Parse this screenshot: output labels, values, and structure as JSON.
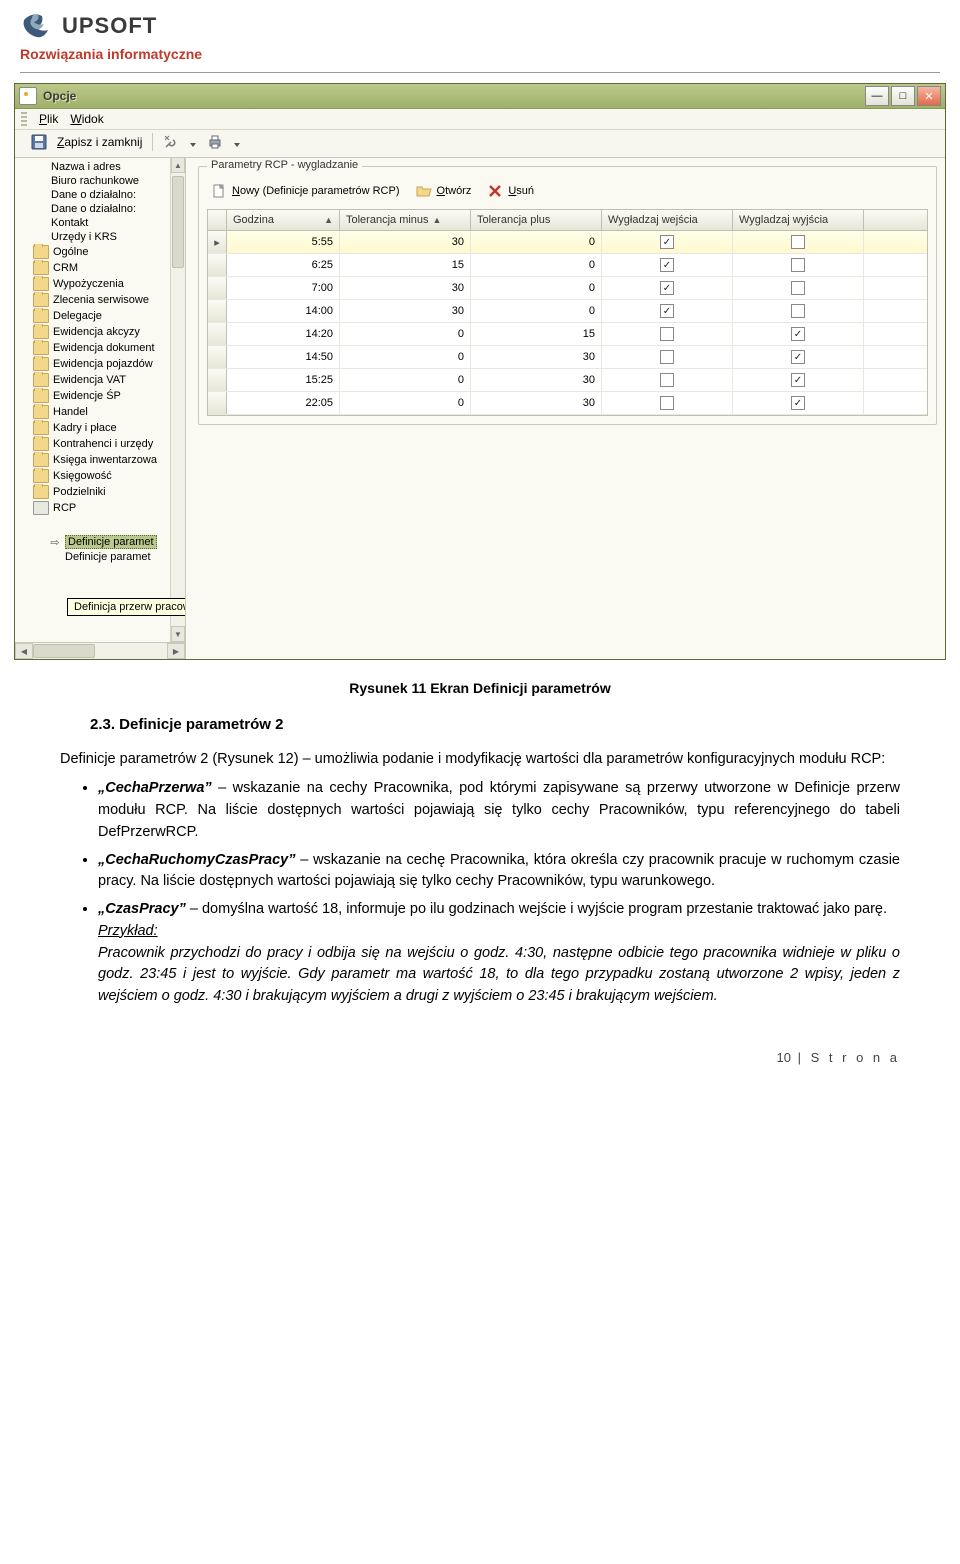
{
  "header": {
    "logo_text": "UPSOFT",
    "tagline": "Rozwiązania informatyczne"
  },
  "window": {
    "title": "Opcje",
    "menu": {
      "plik": "Plik",
      "widok": "Widok"
    },
    "toolbar": {
      "save_label": "Zapisz i zamknij"
    }
  },
  "sidebar": {
    "top_items": [
      "Nazwa i adres",
      "Biuro rachunkowe",
      "Dane o działalno:",
      "Dane o działalno:",
      "Kontakt",
      "Urzędy i KRS"
    ],
    "folders": [
      "Ogólne",
      "CRM",
      "Wypożyczenia",
      "Zlecenia serwisowe",
      "Delegacje",
      "Ewidencja akcyzy",
      "Ewidencja dokument",
      "Ewidencja pojazdów",
      "Ewidencja VAT",
      "Ewidencje ŚP",
      "Handel",
      "Kadry i płace",
      "Kontrahenci i urzędy",
      "Księga inwentarzowa",
      "Księgowość",
      "Podzielniki"
    ],
    "rcp_label": "RCP",
    "rcp_children": {
      "tooltip": "Definicja przerw pracowników",
      "selected": "Definicje paramet",
      "after": "Definicje paramet"
    }
  },
  "groupbox": {
    "legend": "Parametry RCP - wygladzanie",
    "new_label": "Nowy (Definicje parametrów RCP)",
    "open_label": "Otwórz",
    "delete_label": "Usuń"
  },
  "grid": {
    "columns": {
      "godzina": "Godzina",
      "tolminus": "Tolerancja minus",
      "tolplus": "Tolerancja plus",
      "wej": "Wygładzaj wejścia",
      "wyj": "Wygladzaj wyjścia"
    },
    "rows": [
      {
        "godzina": "5:55",
        "tolminus": "30",
        "tolplus": "0",
        "wej": true,
        "wyj": false
      },
      {
        "godzina": "6:25",
        "tolminus": "15",
        "tolplus": "0",
        "wej": true,
        "wyj": false
      },
      {
        "godzina": "7:00",
        "tolminus": "30",
        "tolplus": "0",
        "wej": true,
        "wyj": false
      },
      {
        "godzina": "14:00",
        "tolminus": "30",
        "tolplus": "0",
        "wej": true,
        "wyj": false
      },
      {
        "godzina": "14:20",
        "tolminus": "0",
        "tolplus": "15",
        "wej": false,
        "wyj": true
      },
      {
        "godzina": "14:50",
        "tolminus": "0",
        "tolplus": "30",
        "wej": false,
        "wyj": true
      },
      {
        "godzina": "15:25",
        "tolminus": "0",
        "tolplus": "30",
        "wej": false,
        "wyj": true
      },
      {
        "godzina": "22:05",
        "tolminus": "0",
        "tolplus": "30",
        "wej": false,
        "wyj": true
      }
    ]
  },
  "doc": {
    "caption": "Rysunek 11 Ekran Definicji parametrów",
    "heading": "2.3.   Definicje parametrów 2",
    "para1": "Definicje parametrów 2 (Rysunek 12) – umożliwia podanie i modyfikację wartości dla parametrów konfiguracyjnych modułu RCP:",
    "b1_term": "„CechaPrzerwa”",
    "b1_rest": " – wskazanie na cechy Pracownika, pod którymi zapisywane są przerwy utworzone w Definicje przerw modułu RCP. Na liście dostępnych wartości pojawiają się tylko cechy Pracowników, typu referencyjnego do  tabeli DefPrzerwRCP.",
    "b2_term": "„CechaRuchomyCzasPracy”",
    "b2_rest": " – wskazanie na cechę Pracownika, która określa czy pracownik pracuje w ruchomym czasie pracy. Na liście dostępnych wartości pojawiają się tylko cechy Pracowników, typu warunkowego.",
    "b3_term": "„CzasPracy”",
    "b3_rest": " – domyślna wartość 18, informuje po ilu godzinach wejście i wyjście program przestanie traktować jako parę.",
    "b3_example_head": "Przykład:",
    "b3_example": "Pracownik przychodzi do pracy i odbija się na wejściu o godz. 4:30, następne odbicie tego pracownika widnieje w pliku o godz. 23:45 i jest to wyjście. Gdy parametr ma wartość 18, to dla tego przypadku zostaną utworzone 2 wpisy, jeden z wejściem o godz. 4:30 i brakującym wyjściem a drugi z wyjściem o 23:45 i brakującym wejściem.",
    "footer_page": "10",
    "footer_label": "S t r o n a"
  }
}
